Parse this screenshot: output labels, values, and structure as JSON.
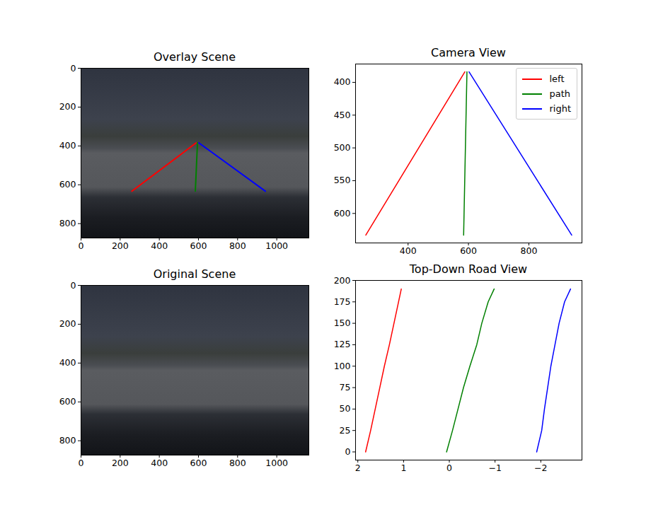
{
  "chart_data": [
    {
      "type": "image",
      "title": "Overlay Scene",
      "xlim": [
        0,
        1164
      ],
      "ylim": [
        874,
        0
      ],
      "xticks": [
        0,
        200,
        400,
        600,
        800,
        1000
      ],
      "yticks": [
        0,
        200,
        400,
        600,
        800
      ],
      "series": [
        {
          "color": "red",
          "x": [
            260,
            588
          ],
          "y": [
            633,
            384
          ]
        },
        {
          "color": "green",
          "x": [
            584,
            595
          ],
          "y": [
            633,
            384
          ]
        },
        {
          "color": "blue",
          "x": [
            942,
            602
          ],
          "y": [
            633,
            384
          ]
        }
      ]
    },
    {
      "type": "line",
      "title": "Camera View",
      "xlim": [
        226,
        976
      ],
      "ylim": [
        645,
        372
      ],
      "xticks": [
        400,
        600,
        800
      ],
      "yticks": [
        400,
        450,
        500,
        550,
        600
      ],
      "legend": "upper right",
      "series": [
        {
          "name": "left",
          "color": "red",
          "x": [
            260,
            588
          ],
          "y": [
            633,
            384
          ]
        },
        {
          "name": "path",
          "color": "green",
          "x": [
            584,
            595
          ],
          "y": [
            633,
            384
          ]
        },
        {
          "name": "right",
          "color": "blue",
          "x": [
            942,
            602
          ],
          "y": [
            633,
            384
          ]
        }
      ]
    },
    {
      "type": "image",
      "title": "Original Scene",
      "xlim": [
        0,
        1164
      ],
      "ylim": [
        874,
        0
      ],
      "xticks": [
        0,
        200,
        400,
        600,
        800,
        1000
      ],
      "yticks": [
        0,
        200,
        400,
        600,
        800
      ]
    },
    {
      "type": "line",
      "title": "Top-Down Road View",
      "xlim": [
        2.05,
        -2.9
      ],
      "ylim": [
        -9.5,
        200
      ],
      "xticks": [
        2,
        1,
        0,
        {
          "value": -1,
          "label": "−1"
        },
        {
          "value": -2,
          "label": "−2"
        }
      ],
      "yticks": [
        0,
        25,
        50,
        75,
        100,
        125,
        150,
        175,
        200
      ],
      "series": [
        {
          "color": "red",
          "x": [
            1.83,
            1.72,
            1.62,
            1.52,
            1.42,
            1.31,
            1.21,
            1.11,
            1.05
          ],
          "y": [
            0,
            25,
            50,
            75,
            100,
            125,
            150,
            175,
            190
          ]
        },
        {
          "color": "green",
          "x": [
            0.06,
            -0.07,
            -0.19,
            -0.31,
            -0.45,
            -0.6,
            -0.71,
            -0.85,
            -0.98
          ],
          "y": [
            0,
            25,
            50,
            75,
            100,
            125,
            150,
            175,
            190
          ]
        },
        {
          "color": "blue",
          "x": [
            -1.91,
            -2.02,
            -2.08,
            -2.15,
            -2.22,
            -2.31,
            -2.4,
            -2.52,
            -2.65
          ],
          "y": [
            0,
            25,
            50,
            75,
            100,
            125,
            150,
            175,
            190
          ]
        }
      ]
    }
  ]
}
